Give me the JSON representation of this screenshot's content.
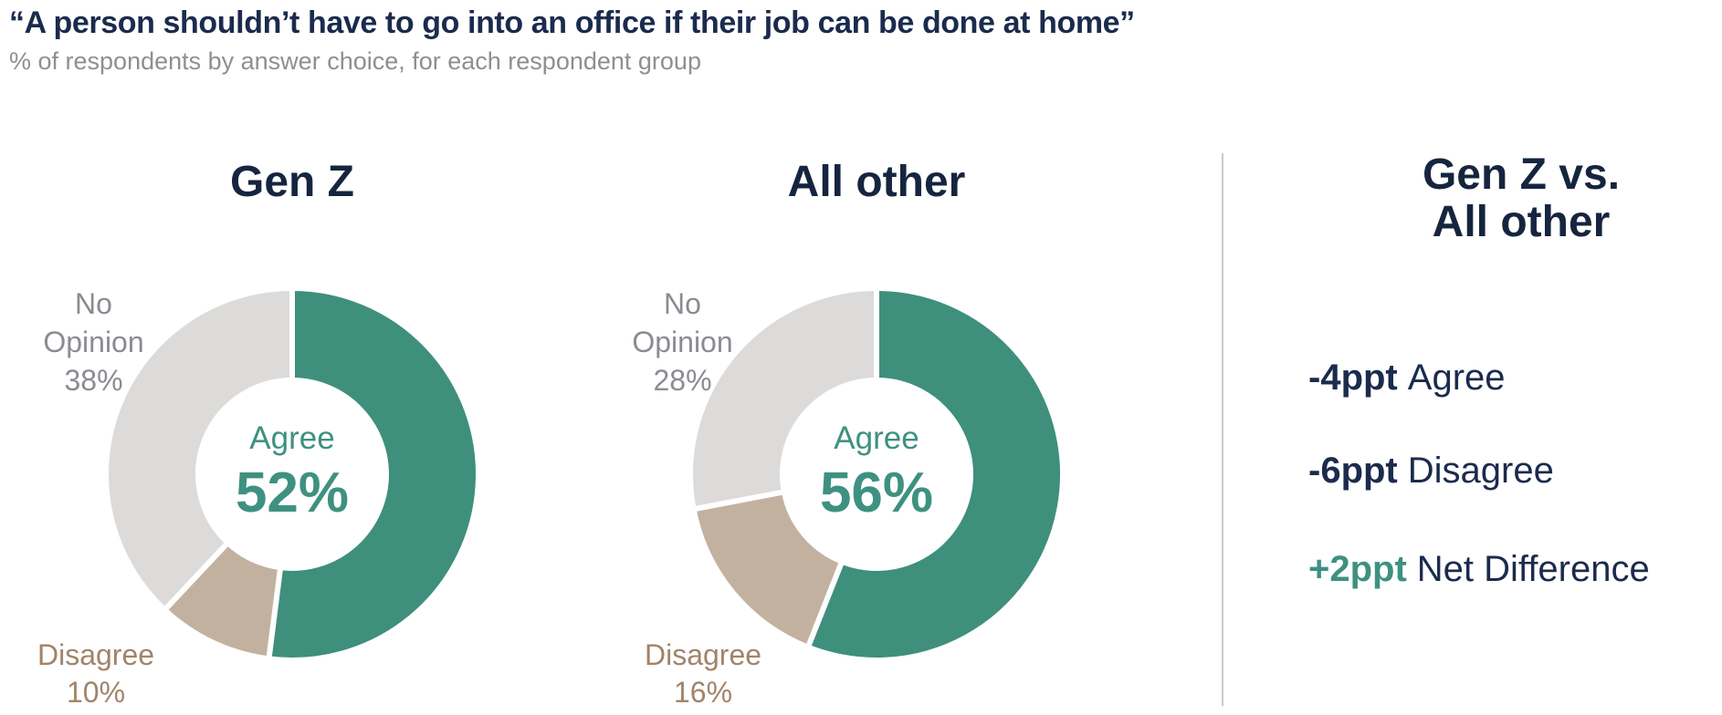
{
  "header": {
    "title": "“A person shouldn’t have to go into an office if their job can be done at home”",
    "subtitle": "% of respondents by answer choice, for each respondent group"
  },
  "colors": {
    "agree_segment": "#3F8F7D",
    "disagree_segment": "#C3B1A0",
    "no_opinion_segment": "#DCDBD9",
    "teal_text": "#3E9180",
    "navy_text": "#1B2B4D",
    "heading_navy": "#16253F",
    "no_opinion_label_gray": "#8B8B93",
    "disagree_label_brown": "#A1846A",
    "subtitle_gray": "#8F8F8F",
    "divider_gray": "#C9C9C9",
    "segment_gap": "#FFFFFF"
  },
  "segment_colors": {
    "Agree": "#3F8F7D",
    "Disagree": "#C3B1A0",
    "No Opinion": "#DCDBD9"
  },
  "chart_data": [
    {
      "type": "pie",
      "subtype": "donut",
      "group": "Gen Z",
      "categories": [
        "Agree",
        "Disagree",
        "No Opinion"
      ],
      "values": [
        52,
        10,
        38
      ],
      "unit": "%",
      "center_label": "Agree",
      "center_value": "52%",
      "labels": {
        "no_opinion": [
          "No",
          "Opinion",
          "38%"
        ],
        "disagree": [
          "Disagree",
          "10%"
        ]
      },
      "layout": {
        "start": "top",
        "direction": "clockwise",
        "hole_ratio": 0.5,
        "legend": "none"
      }
    },
    {
      "type": "pie",
      "subtype": "donut",
      "group": "All other",
      "categories": [
        "Agree",
        "Disagree",
        "No Opinion"
      ],
      "values": [
        56,
        16,
        28
      ],
      "unit": "%",
      "center_label": "Agree",
      "center_value": "56%",
      "labels": {
        "no_opinion": [
          "No",
          "Opinion",
          "28%"
        ],
        "disagree": [
          "Disagree",
          "16%"
        ]
      },
      "layout": {
        "start": "top",
        "direction": "clockwise",
        "hole_ratio": 0.5,
        "legend": "none"
      }
    }
  ],
  "comparison": {
    "title_lines": [
      "Gen Z vs.",
      "All other"
    ],
    "items": [
      {
        "value": "-4ppt",
        "label": "Agree",
        "value_color": "#1B2B4D"
      },
      {
        "value": "-6ppt",
        "label": "Disagree",
        "value_color": "#1B2B4D"
      },
      {
        "value": "+2ppt",
        "label": "Net Difference",
        "value_color": "#3E9180"
      }
    ]
  }
}
